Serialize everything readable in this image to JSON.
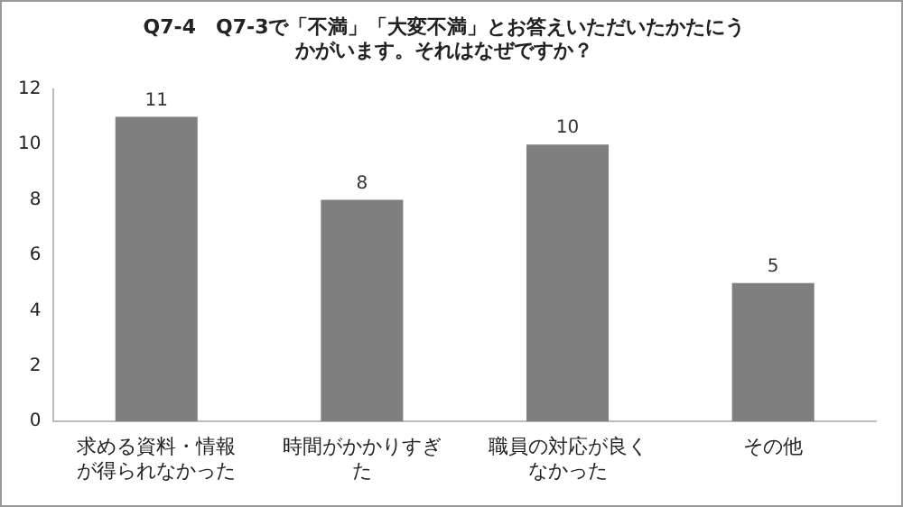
{
  "chart_data": {
    "type": "bar",
    "title": "Q7-4　Q7-3で「不満」「大変不満」とお答えいただいたかたにうかがいます。それはなぜですか？",
    "categories": [
      "求める資料・情報が得られなかった",
      "時間がかかりすぎた",
      "職員の対応が良くなかった",
      "その他"
    ],
    "values": [
      11,
      8,
      10,
      5
    ],
    "color": "#7f7f7f",
    "ylim": [
      0,
      12
    ],
    "yticks": [
      0,
      2,
      4,
      6,
      8,
      10,
      12
    ],
    "grid": false,
    "data_labels": true
  }
}
